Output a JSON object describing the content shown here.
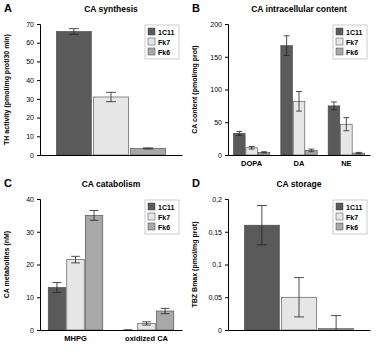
{
  "chart_data": [
    {
      "type": "bar",
      "annotation": "A",
      "title": "CA synthesis",
      "ylabel": "TH activity (pmol/mg prot/30 min)",
      "categories": [
        null
      ],
      "series": [
        {
          "name": "1C11",
          "color": "#5a5a5a",
          "values": [
            66
          ],
          "errors": [
            1.5
          ]
        },
        {
          "name": "Fk7",
          "color": "#e6e6e6",
          "values": [
            31
          ],
          "errors": [
            2.5
          ]
        },
        {
          "name": "Fk6",
          "color": "#a8a8a8",
          "values": [
            3.5
          ],
          "errors": [
            0.3
          ]
        }
      ],
      "ylim": [
        0,
        70
      ],
      "yticks": [
        0,
        10,
        20,
        30,
        40,
        50,
        60,
        70
      ],
      "legend": "upper right"
    },
    {
      "type": "bar",
      "annotation": "B",
      "title": "CA intracellular content",
      "ylabel": "CA content (pmol/mg prot)",
      "categories": [
        "DOPA",
        "DA",
        "NE"
      ],
      "series": [
        {
          "name": "1C11",
          "color": "#5a5a5a",
          "values": [
            33,
            167,
            75
          ],
          "errors": [
            3,
            15,
            6
          ]
        },
        {
          "name": "Fk7",
          "color": "#e6e6e6",
          "values": [
            11,
            82,
            47
          ],
          "errors": [
            2,
            15,
            10
          ]
        },
        {
          "name": "Fk6",
          "color": "#a8a8a8",
          "values": [
            4,
            7,
            3
          ],
          "errors": [
            1,
            2,
            1
          ]
        }
      ],
      "ylim": [
        0,
        200
      ],
      "yticks": [
        0,
        50,
        100,
        150,
        200
      ],
      "legend": "upper right"
    },
    {
      "type": "bar",
      "annotation": "C",
      "title": "CA catabolism",
      "ylabel": "CA metabolites (nM)",
      "categories": [
        "MHPG",
        "oxidized CA"
      ],
      "series": [
        {
          "name": "1C11",
          "color": "#5a5a5a",
          "values": [
            13,
            0
          ],
          "errors": [
            1.5,
            0
          ]
        },
        {
          "name": "Fk7",
          "color": "#e6e6e6",
          "values": [
            21.5,
            2
          ],
          "errors": [
            1,
            0.5
          ]
        },
        {
          "name": "Fk6",
          "color": "#a8a8a8",
          "values": [
            35,
            5.8
          ],
          "errors": [
            1.5,
            0.8
          ]
        }
      ],
      "ylim": [
        0,
        40
      ],
      "yticks": [
        0,
        10,
        20,
        30,
        40
      ],
      "legend": "upper right"
    },
    {
      "type": "bar",
      "annotation": "D",
      "title": "CA storage",
      "ylabel": "TBZ Bmax (pmol/mg prot)",
      "categories": [
        null
      ],
      "series": [
        {
          "name": "1C11",
          "color": "#5a5a5a",
          "values": [
            0.16
          ],
          "errors": [
            0.03
          ]
        },
        {
          "name": "Fk7",
          "color": "#e6e6e6",
          "values": [
            0.05
          ],
          "errors": [
            0.03
          ]
        },
        {
          "name": "Fk6",
          "color": "#a8a8a8",
          "values": [
            0.002
          ],
          "errors": [
            0.02
          ]
        }
      ],
      "ylim": [
        0,
        0.2
      ],
      "yticks": [
        0,
        {
          "value": 0.05,
          "label": "0,05"
        },
        {
          "value": 0.1,
          "label": "0,1"
        },
        {
          "value": 0.15,
          "label": "0,15"
        },
        {
          "value": 0.2,
          "label": "0,2"
        }
      ],
      "legend": "upper right"
    }
  ]
}
